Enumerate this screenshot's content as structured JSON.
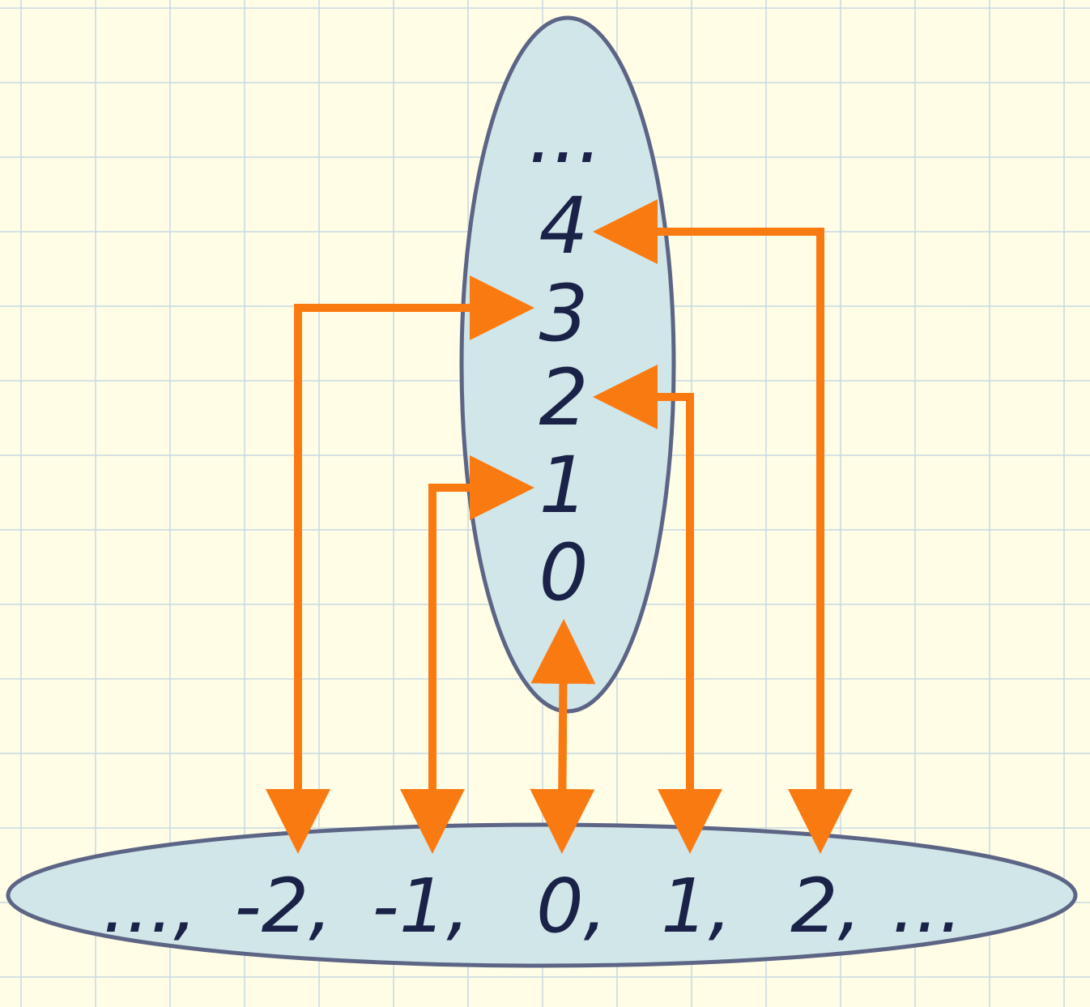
{
  "colors": {
    "background": "#fffde6",
    "grid": "#c5d9e3",
    "ellipse_fill": "#d1e6e9",
    "ellipse_stroke": "#5c6585",
    "arrow": "#fa7a12",
    "text": "#1a2248"
  },
  "naturals": {
    "ellipsis": "...",
    "items": [
      "4",
      "3",
      "2",
      "1",
      "0"
    ]
  },
  "integers": {
    "items": [
      "...,",
      "-2,",
      "-1,",
      "0,",
      "1,",
      "2,",
      "..."
    ]
  },
  "mappings": [
    {
      "from": "-2",
      "to": "3"
    },
    {
      "from": "-1",
      "to": "1"
    },
    {
      "from": "0",
      "to": "0"
    },
    {
      "from": "1",
      "to": "2"
    },
    {
      "from": "2",
      "to": "4"
    }
  ]
}
